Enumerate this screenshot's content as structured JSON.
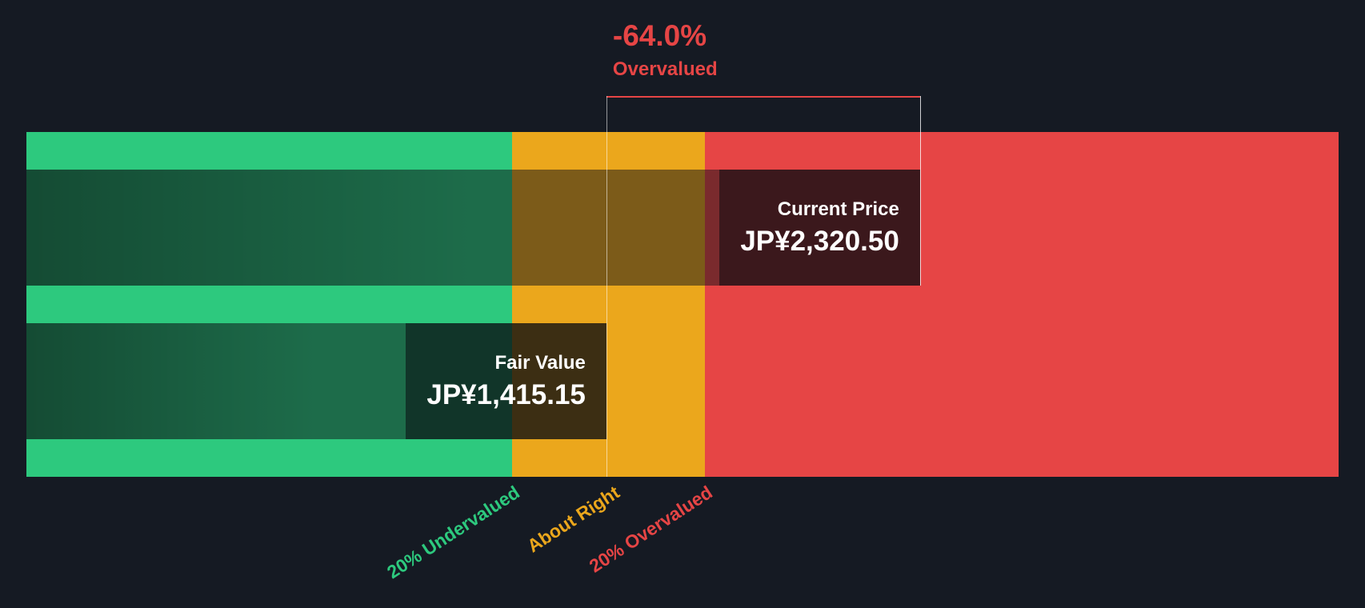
{
  "page": {
    "background": "#151A23"
  },
  "chart_data": {
    "type": "bar",
    "kind": "share-price-vs-fair-value-gauge",
    "annotation": {
      "pct": "-64.0%",
      "label": "Overvalued",
      "color": "#E64545"
    },
    "current_price": {
      "label": "Current Price",
      "value": "JP¥2,320.50",
      "amount": 2320.5,
      "position_pct": 68.1
    },
    "fair_value": {
      "label": "Fair Value",
      "value": "JP¥1,415.15",
      "amount": 1415.15,
      "position_pct": 44.2
    },
    "zones": [
      {
        "label": "20% Undervalued",
        "color": "#2DC97E",
        "start_pct": 0,
        "end_pct": 37.0,
        "label_anchor_pct": 37.0
      },
      {
        "label": "About Right",
        "color": "#EBA71C",
        "start_pct": 37.0,
        "end_pct": 51.7,
        "label_anchor_pct": 44.6
      },
      {
        "label": "20% Overvalued",
        "color": "#E64545",
        "start_pct": 51.7,
        "end_pct": 100,
        "label_anchor_pct": 51.7
      }
    ],
    "layout": {
      "legend": "none",
      "grid": "off",
      "band_rows": [
        "strip",
        "current-price-row",
        "strip",
        "fair-value-row",
        "strip"
      ]
    }
  }
}
